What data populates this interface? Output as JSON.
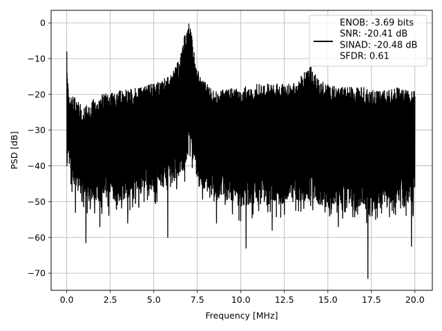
{
  "chart_data": {
    "type": "line",
    "title": "",
    "xlabel": "Frequency [MHz]",
    "ylabel": "PSD [dB]",
    "xlim": [
      -0.9,
      21.0
    ],
    "ylim": [
      -74.8,
      3.5
    ],
    "xticks": [
      0.0,
      2.5,
      5.0,
      7.5,
      10.0,
      12.5,
      15.0,
      17.5,
      20.0
    ],
    "xtick_labels": [
      "0.0",
      "2.5",
      "5.0",
      "7.5",
      "10.0",
      "12.5",
      "15.0",
      "17.5",
      "20.0"
    ],
    "yticks": [
      0,
      -10,
      -20,
      -30,
      -40,
      -50,
      -60,
      -70
    ],
    "ytick_labels": [
      "0",
      "−10",
      "−20",
      "−30",
      "−40",
      "−50",
      "−60",
      "−70"
    ],
    "grid": true,
    "legend_position": "top-right",
    "series_color": "#000000",
    "series": [
      {
        "name": "ENOB: -3.69 bits\nSNR: -20.41 dB\nSINAD: -20.48 dB\nSFDR: 0.61",
        "x_start": 0.0,
        "x_end": 20.0,
        "envelope_top": [
          [
            0.0,
            -8
          ],
          [
            0.05,
            -14
          ],
          [
            0.1,
            -20
          ],
          [
            0.5,
            -21
          ],
          [
            1.0,
            -23
          ],
          [
            2.0,
            -20
          ],
          [
            3.0,
            -19
          ],
          [
            4.0,
            -18
          ],
          [
            5.0,
            -17
          ],
          [
            5.5,
            -16
          ],
          [
            6.0,
            -14
          ],
          [
            6.5,
            -10
          ],
          [
            6.8,
            -3
          ],
          [
            7.0,
            0
          ],
          [
            7.2,
            -3
          ],
          [
            7.4,
            -12
          ],
          [
            7.8,
            -16
          ],
          [
            8.5,
            -19
          ],
          [
            10.0,
            -18
          ],
          [
            11.0,
            -17
          ],
          [
            12.0,
            -17
          ],
          [
            13.0,
            -17
          ],
          [
            14.0,
            -12
          ],
          [
            14.5,
            -16
          ],
          [
            15.5,
            -18
          ],
          [
            17.0,
            -18
          ],
          [
            18.0,
            -19
          ],
          [
            19.0,
            -18
          ],
          [
            20.0,
            -19
          ]
        ],
        "envelope_bottom": [
          [
            0.0,
            -40
          ],
          [
            0.3,
            -45
          ],
          [
            1.0,
            -49
          ],
          [
            2.0,
            -50
          ],
          [
            3.0,
            -50
          ],
          [
            4.0,
            -48
          ],
          [
            5.0,
            -47
          ],
          [
            6.0,
            -45
          ],
          [
            6.6,
            -42
          ],
          [
            6.9,
            -40
          ],
          [
            7.0,
            -30
          ],
          [
            7.2,
            -38
          ],
          [
            7.5,
            -45
          ],
          [
            8.0,
            -48
          ],
          [
            9.0,
            -49
          ],
          [
            10.0,
            -52
          ],
          [
            11.0,
            -50
          ],
          [
            12.0,
            -51
          ],
          [
            13.0,
            -50
          ],
          [
            14.0,
            -50
          ],
          [
            15.0,
            -52
          ],
          [
            16.0,
            -51
          ],
          [
            17.0,
            -52
          ],
          [
            18.0,
            -52
          ],
          [
            19.0,
            -50
          ],
          [
            20.0,
            -50
          ]
        ],
        "deep_nulls": [
          [
            0.5,
            -53
          ],
          [
            1.1,
            -61.5
          ],
          [
            1.9,
            -57
          ],
          [
            3.5,
            -56
          ],
          [
            5.8,
            -60
          ],
          [
            8.6,
            -56
          ],
          [
            10.3,
            -63
          ],
          [
            11.8,
            -58
          ],
          [
            15.6,
            -57
          ],
          [
            17.3,
            -71.5
          ],
          [
            19.8,
            -62.5
          ]
        ]
      }
    ]
  }
}
